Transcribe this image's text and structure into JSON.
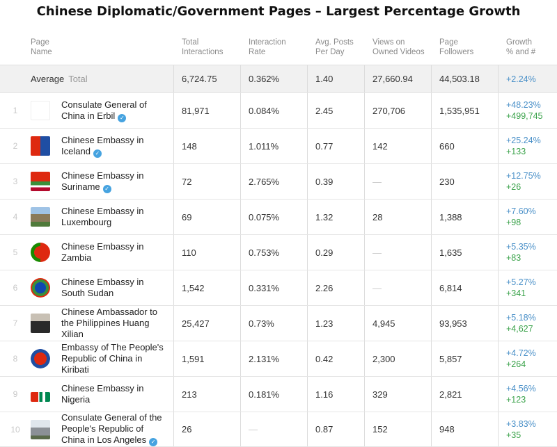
{
  "title": "Chinese Diplomatic/Government Pages – Largest Percentage Growth",
  "headers": {
    "page_name": [
      "Page",
      "Name"
    ],
    "interactions": [
      "Total",
      "Interactions"
    ],
    "rate": [
      "Interaction",
      "Rate"
    ],
    "ppd": [
      "Avg. Posts",
      "Per Day"
    ],
    "views": [
      "Views on",
      "Owned Videos"
    ],
    "followers": [
      "Page",
      "Followers"
    ],
    "growth": [
      "Growth",
      "% and #"
    ]
  },
  "average": {
    "label": "Average",
    "sublabel": "Total",
    "interactions": "6,724.75",
    "rate": "0.362%",
    "ppd": "1.40",
    "views": "27,660.94",
    "followers": "44,503.18",
    "growth_pct": "+2.24%"
  },
  "rows": [
    {
      "rank": "1",
      "icon": "consulate-erbil-logo-icon",
      "name": [
        "Consulate General of",
        "China in Erbil"
      ],
      "verified": true,
      "interactions": "81,971",
      "rate": "0.084%",
      "ppd": "2.45",
      "views": "270,706",
      "followers": "1,535,951",
      "growth_pct": "+48.23%",
      "growth_num": "+499,745"
    },
    {
      "rank": "2",
      "icon": "china-iceland-flags-icon",
      "name": [
        "Chinese Embassy in",
        "Iceland"
      ],
      "verified": true,
      "interactions": "148",
      "rate": "1.011%",
      "ppd": "0.77",
      "views": "142",
      "followers": "660",
      "growth_pct": "+25.24%",
      "growth_num": "+133"
    },
    {
      "rank": "3",
      "icon": "china-suriname-flags-icon",
      "name": [
        "Chinese Embassy in",
        "Suriname"
      ],
      "verified": true,
      "interactions": "72",
      "rate": "2.765%",
      "ppd": "0.39",
      "views": "—",
      "followers": "230",
      "growth_pct": "+12.75%",
      "growth_num": "+26"
    },
    {
      "rank": "4",
      "icon": "embassy-building-photo-icon",
      "name": [
        "Chinese Embassy in",
        "Luxembourg"
      ],
      "verified": false,
      "interactions": "69",
      "rate": "0.075%",
      "ppd": "1.32",
      "views": "28",
      "followers": "1,388",
      "growth_pct": "+7.60%",
      "growth_num": "+98"
    },
    {
      "rank": "5",
      "icon": "china-zambia-flags-icon",
      "name": [
        "Chinese Embassy in",
        "Zambia"
      ],
      "verified": false,
      "interactions": "110",
      "rate": "0.753%",
      "ppd": "0.29",
      "views": "—",
      "followers": "1,635",
      "growth_pct": "+5.35%",
      "growth_num": "+83"
    },
    {
      "rank": "6",
      "icon": "china-south-sudan-flags-icon",
      "name": [
        "Chinese Embassy in",
        "South Sudan"
      ],
      "verified": false,
      "interactions": "1,542",
      "rate": "0.331%",
      "ppd": "2.26",
      "views": "—",
      "followers": "6,814",
      "growth_pct": "+5.27%",
      "growth_num": "+341"
    },
    {
      "rank": "7",
      "icon": "ambassador-portrait-icon",
      "name": [
        "Chinese Ambassador to",
        "the Philippines Huang",
        "Xilian"
      ],
      "verified": false,
      "interactions": "25,427",
      "rate": "0.73%",
      "ppd": "1.23",
      "views": "4,945",
      "followers": "93,953",
      "growth_pct": "+5.18%",
      "growth_num": "+4,627"
    },
    {
      "rank": "8",
      "icon": "china-kiribati-flags-icon",
      "name": [
        "Embassy of The People's",
        "Republic of China in",
        "Kiribati"
      ],
      "verified": false,
      "interactions": "1,591",
      "rate": "2.131%",
      "ppd": "0.42",
      "views": "2,300",
      "followers": "5,857",
      "growth_pct": "+4.72%",
      "growth_num": "+264"
    },
    {
      "rank": "9",
      "icon": "china-nigeria-flags-icon",
      "name": [
        "Chinese Embassy in",
        "Nigeria"
      ],
      "verified": false,
      "interactions": "213",
      "rate": "0.181%",
      "ppd": "1.16",
      "views": "329",
      "followers": "2,821",
      "growth_pct": "+4.56%",
      "growth_num": "+123"
    },
    {
      "rank": "10",
      "icon": "consulate-building-photo-icon",
      "name": [
        "Consulate General of the",
        "People's Republic of",
        "China in Los Angeles"
      ],
      "verified": true,
      "interactions": "26",
      "rate": "—",
      "ppd": "0.87",
      "views": "152",
      "followers": "948",
      "growth_pct": "+3.83%",
      "growth_num": "+35"
    }
  ]
}
